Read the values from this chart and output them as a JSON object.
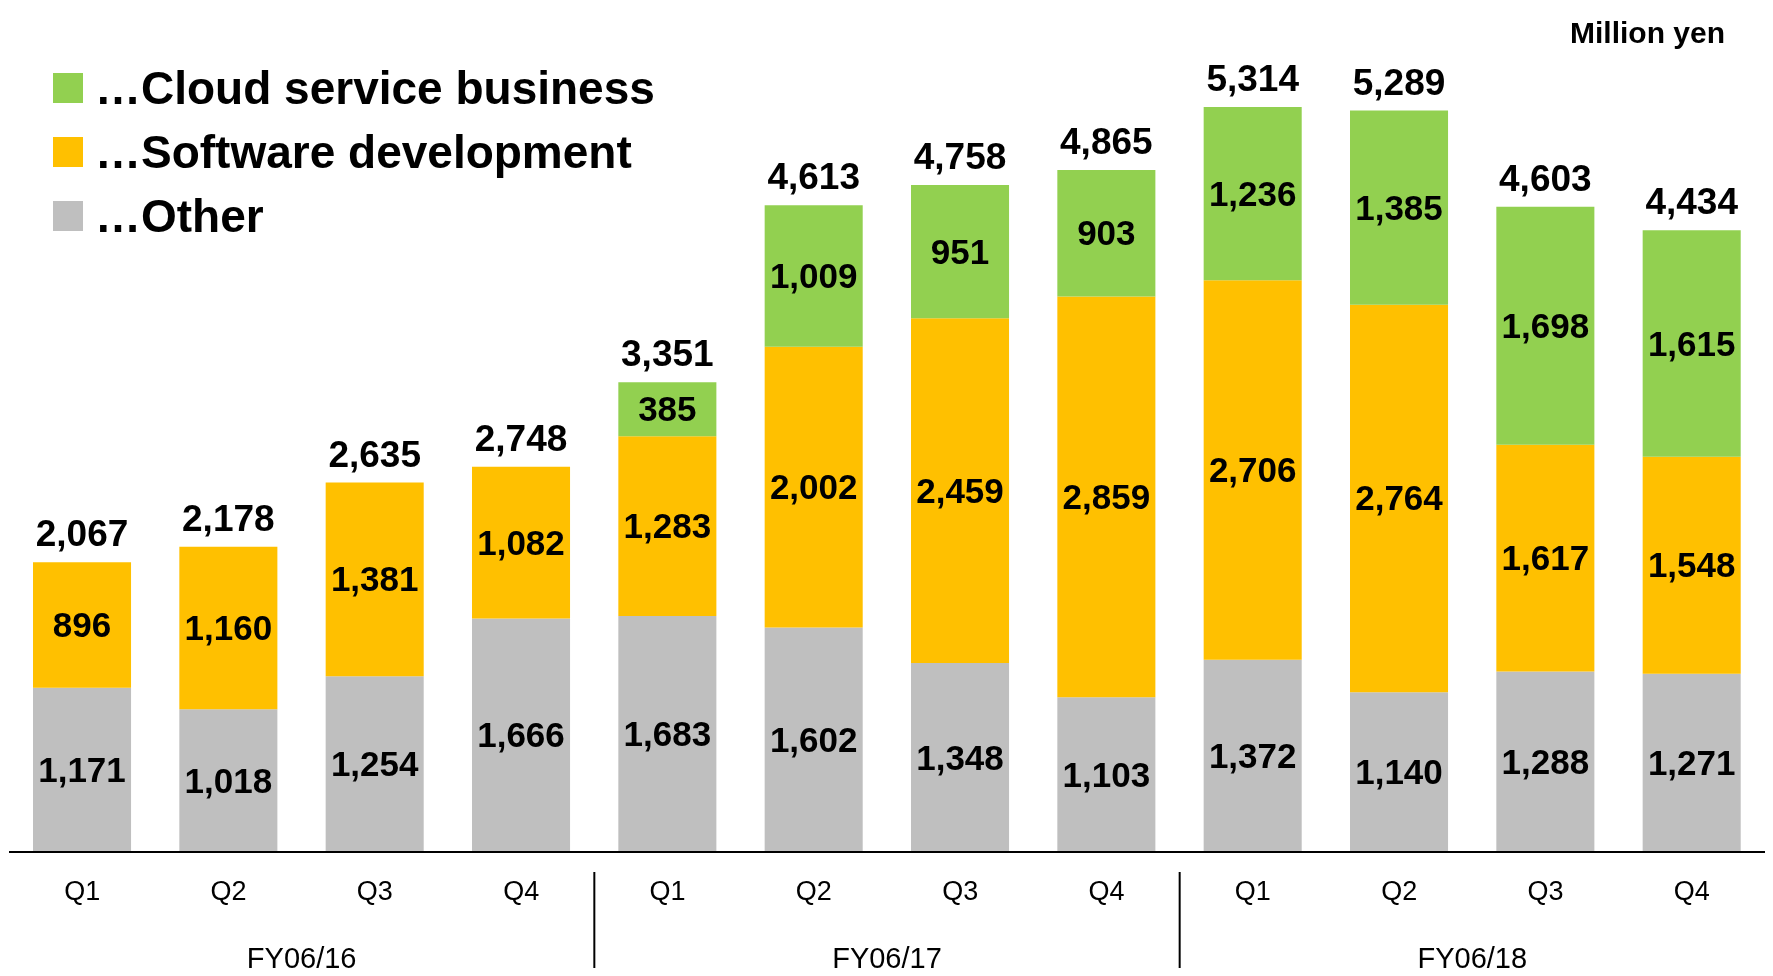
{
  "chart_data": {
    "type": "bar",
    "stacked": true,
    "legend": "top left",
    "tick_labels": "x",
    "categories": [
      "Q1",
      "Q2",
      "Q3",
      "Q4",
      "Q1",
      "Q2",
      "Q3",
      "Q4",
      "Q1",
      "Q2",
      "Q3",
      "Q4"
    ],
    "series": [
      {
        "name": "…Other",
        "color": "#bfbfbf",
        "values": [
          1171,
          1018,
          1254,
          1666,
          1683,
          1602,
          1348,
          1103,
          1372,
          1140,
          1288,
          1271
        ],
        "value_labels": [
          "1,171",
          "1,018",
          "1,254",
          "1,666",
          "1,683",
          "1,602",
          "1,348",
          "1,103",
          "1,372",
          "1,140",
          "1,288",
          "1,271"
        ]
      },
      {
        "name": "…Software development",
        "color": "#ffc000",
        "values": [
          896,
          1160,
          1381,
          1082,
          1283,
          2002,
          2459,
          2859,
          2706,
          2764,
          1617,
          1548
        ],
        "value_labels": [
          "896",
          "1,160",
          "1,381",
          "1,082",
          "1,283",
          "2,002",
          "2,459",
          "2,859",
          "2,706",
          "2,764",
          "1,617",
          "1,548"
        ]
      },
      {
        "name": "…Cloud service business",
        "color": "#92d050",
        "values": [
          null,
          null,
          null,
          null,
          385,
          1009,
          951,
          903,
          1236,
          1385,
          1698,
          1615
        ],
        "value_labels": [
          null,
          null,
          null,
          null,
          "385",
          "1,009",
          "951",
          "903",
          "1,236",
          "1,385",
          "1,698",
          "1,615"
        ]
      }
    ],
    "totals": [
      "2,067",
      "2,178",
      "2,635",
      "2,748",
      "3,351",
      "4,613",
      "4,758",
      "4,865",
      "5,314",
      "5,289",
      "4,603",
      "4,434"
    ],
    "annotations": [
      "Million yen",
      "FY06/16",
      "FY06/17",
      "FY06/18"
    ]
  }
}
